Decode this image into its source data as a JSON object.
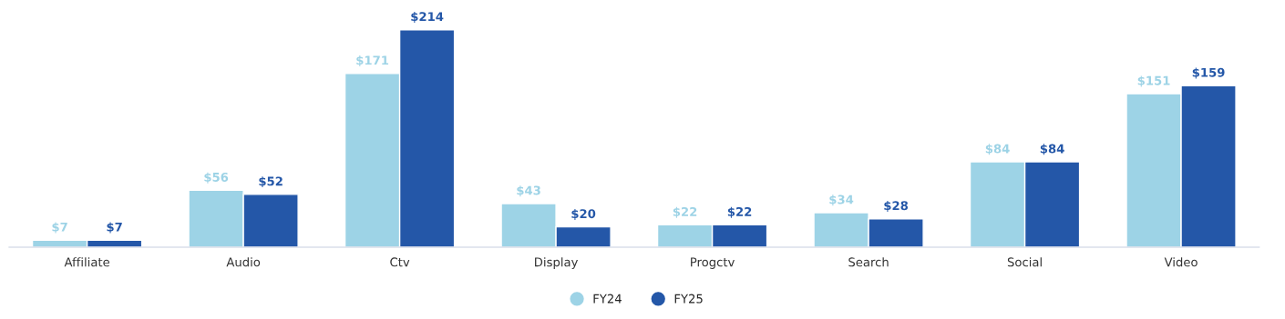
{
  "chart_data": {
    "type": "bar",
    "categories": [
      "Affiliate",
      "Audio",
      "Ctv",
      "Display",
      "Progctv",
      "Search",
      "Social",
      "Video"
    ],
    "series": [
      {
        "name": "FY24",
        "color": "#9dd3e6",
        "values": [
          7,
          56,
          171,
          43,
          22,
          34,
          84,
          151
        ],
        "value_labels": [
          "$7",
          "$56",
          "$171",
          "$43",
          "$22",
          "$34",
          "$84",
          "$151"
        ]
      },
      {
        "name": "FY25",
        "color": "#2457a8",
        "values": [
          7,
          52,
          214,
          20,
          22,
          28,
          84,
          159
        ],
        "value_labels": [
          "$7",
          "$52",
          "$214",
          "$20",
          "$22",
          "$28",
          "$84",
          "$159"
        ]
      }
    ],
    "tick_labels": "x",
    "grid": false,
    "legend": "bottom",
    "marker": "circle"
  }
}
